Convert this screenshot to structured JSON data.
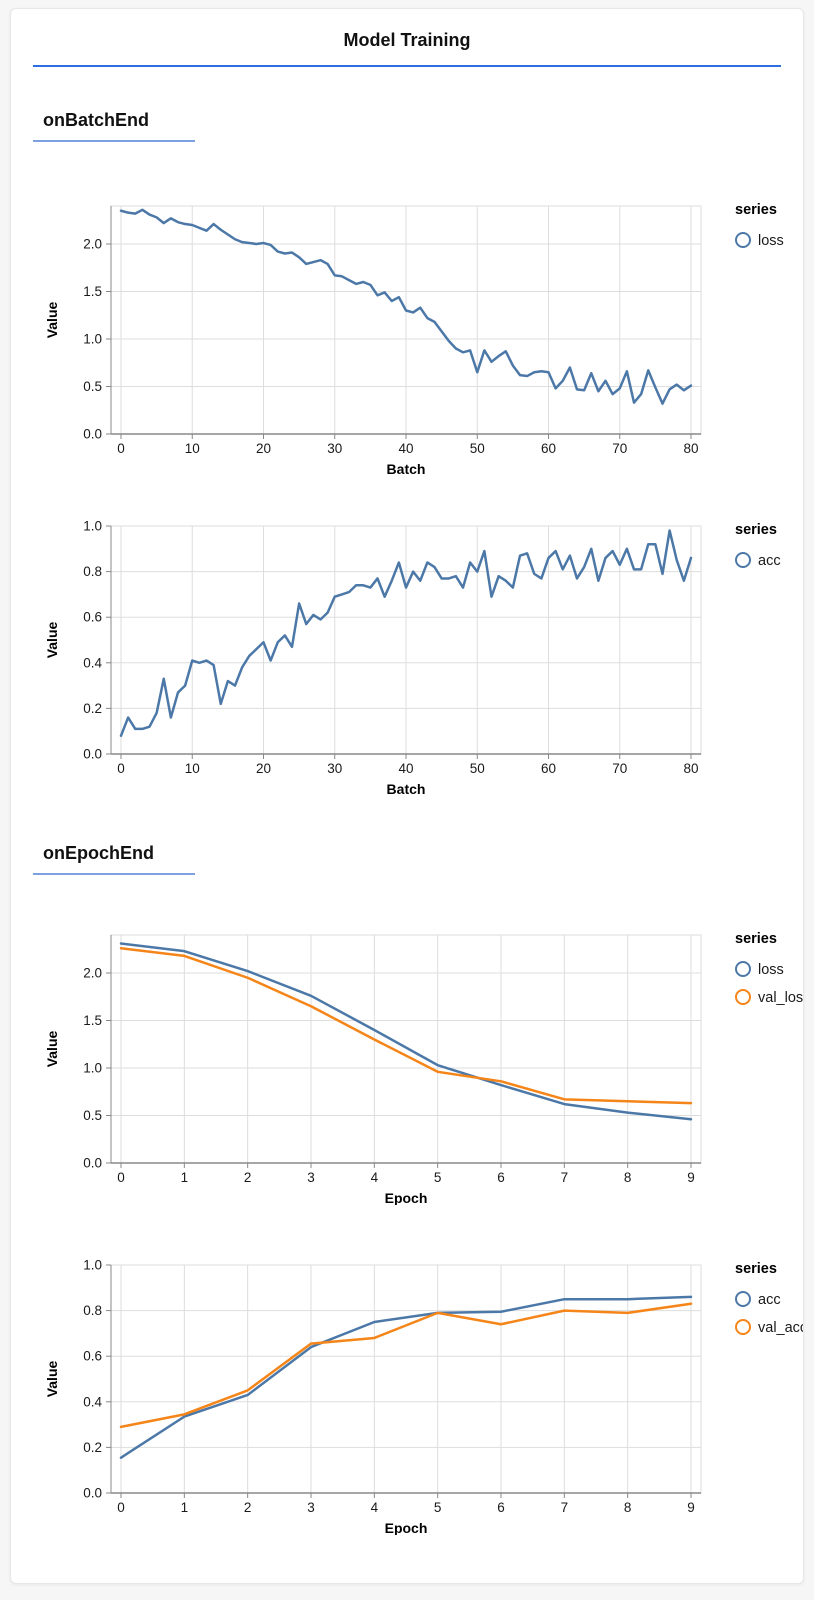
{
  "page": {
    "title": "Model Training"
  },
  "sections": [
    {
      "heading": "onBatchEnd"
    },
    {
      "heading": "onEpochEnd"
    }
  ],
  "theme": {
    "title_rule_color": "#2b6fe3",
    "heading_underline_color": "#7da0e2",
    "grid_color": "#dddddd",
    "axis_domain_color": "#888888",
    "tick_label_color": "#1a1a1a",
    "series_blue": "#4c78a8",
    "series_orange": "#f58518"
  },
  "chart_data": [
    {
      "id": "batch-loss",
      "type": "line",
      "section": "onBatchEnd",
      "xlabel": "Batch",
      "ylabel": "Value",
      "legend_title": "series",
      "legend_position": "right",
      "grid": true,
      "x_domain": [
        0,
        80
      ],
      "y_domain": [
        0,
        2.4
      ],
      "x_tick_values": [
        0,
        10,
        20,
        30,
        40,
        50,
        60,
        70,
        80
      ],
      "x_tick_labels": [
        "0",
        "10",
        "20",
        "30",
        "40",
        "50",
        "60",
        "70",
        "80"
      ],
      "y_tick_values": [
        0,
        0.5,
        1.0,
        1.5,
        2.0
      ],
      "y_tick_labels": [
        "0.0",
        "0.5",
        "1.0",
        "1.5",
        "2.0"
      ],
      "series": [
        {
          "name": "loss",
          "color": "#4c78a8",
          "values": [
            2.35,
            2.33,
            2.32,
            2.36,
            2.31,
            2.28,
            2.22,
            2.27,
            2.23,
            2.21,
            2.2,
            2.17,
            2.14,
            2.21,
            2.15,
            2.1,
            2.05,
            2.02,
            2.01,
            2.0,
            2.01,
            1.99,
            1.92,
            1.9,
            1.91,
            1.86,
            1.79,
            1.81,
            1.83,
            1.79,
            1.67,
            1.66,
            1.62,
            1.58,
            1.6,
            1.57,
            1.46,
            1.49,
            1.4,
            1.44,
            1.3,
            1.28,
            1.33,
            1.22,
            1.18,
            1.08,
            0.98,
            0.9,
            0.86,
            0.88,
            0.65,
            0.88,
            0.76,
            0.82,
            0.87,
            0.72,
            0.62,
            0.61,
            0.65,
            0.66,
            0.65,
            0.48,
            0.56,
            0.7,
            0.47,
            0.46,
            0.64,
            0.45,
            0.56,
            0.42,
            0.48,
            0.66,
            0.33,
            0.42,
            0.67,
            0.49,
            0.32,
            0.47,
            0.52,
            0.46,
            0.51
          ]
        }
      ]
    },
    {
      "id": "batch-acc",
      "type": "line",
      "section": "onBatchEnd",
      "xlabel": "Batch",
      "ylabel": "Value",
      "legend_title": "series",
      "legend_position": "right",
      "grid": true,
      "x_domain": [
        0,
        80
      ],
      "y_domain": [
        0,
        1.0
      ],
      "x_tick_values": [
        0,
        10,
        20,
        30,
        40,
        50,
        60,
        70,
        80
      ],
      "x_tick_labels": [
        "0",
        "10",
        "20",
        "30",
        "40",
        "50",
        "60",
        "70",
        "80"
      ],
      "y_tick_values": [
        0,
        0.2,
        0.4,
        0.6,
        0.8,
        1.0
      ],
      "y_tick_labels": [
        "0.0",
        "0.2",
        "0.4",
        "0.6",
        "0.8",
        "1.0"
      ],
      "series": [
        {
          "name": "acc",
          "color": "#4c78a8",
          "values": [
            0.08,
            0.16,
            0.11,
            0.11,
            0.12,
            0.18,
            0.33,
            0.16,
            0.27,
            0.3,
            0.41,
            0.4,
            0.41,
            0.39,
            0.22,
            0.32,
            0.3,
            0.38,
            0.43,
            0.46,
            0.49,
            0.41,
            0.49,
            0.52,
            0.47,
            0.66,
            0.57,
            0.61,
            0.59,
            0.62,
            0.69,
            0.7,
            0.71,
            0.74,
            0.74,
            0.73,
            0.77,
            0.69,
            0.76,
            0.84,
            0.73,
            0.8,
            0.76,
            0.84,
            0.82,
            0.77,
            0.77,
            0.78,
            0.73,
            0.84,
            0.8,
            0.89,
            0.69,
            0.78,
            0.76,
            0.73,
            0.87,
            0.88,
            0.79,
            0.77,
            0.86,
            0.89,
            0.81,
            0.87,
            0.77,
            0.82,
            0.9,
            0.76,
            0.86,
            0.89,
            0.83,
            0.9,
            0.81,
            0.81,
            0.92,
            0.92,
            0.79,
            0.98,
            0.85,
            0.76,
            0.86
          ]
        }
      ]
    },
    {
      "id": "epoch-loss",
      "type": "line",
      "section": "onEpochEnd",
      "xlabel": "Epoch",
      "ylabel": "Value",
      "legend_title": "series",
      "legend_position": "right",
      "grid": true,
      "x_domain": [
        0,
        9
      ],
      "y_domain": [
        0,
        2.4
      ],
      "x_tick_values": [
        0,
        1,
        2,
        3,
        4,
        5,
        6,
        7,
        8,
        9
      ],
      "x_tick_labels": [
        "0",
        "1",
        "2",
        "3",
        "4",
        "5",
        "6",
        "7",
        "8",
        "9"
      ],
      "y_tick_values": [
        0,
        0.5,
        1.0,
        1.5,
        2.0
      ],
      "y_tick_labels": [
        "0.0",
        "0.5",
        "1.0",
        "1.5",
        "2.0"
      ],
      "series": [
        {
          "name": "loss",
          "color": "#4c78a8",
          "values": [
            2.31,
            2.23,
            2.02,
            1.76,
            1.4,
            1.03,
            0.82,
            0.62,
            0.53,
            0.46
          ]
        },
        {
          "name": "val_loss",
          "color": "#f58518",
          "values": [
            2.26,
            2.18,
            1.95,
            1.65,
            1.3,
            0.96,
            0.86,
            0.67,
            0.65,
            0.63
          ]
        }
      ]
    },
    {
      "id": "epoch-acc",
      "type": "line",
      "section": "onEpochEnd",
      "xlabel": "Epoch",
      "ylabel": "Value",
      "legend_title": "series",
      "legend_position": "right",
      "grid": true,
      "x_domain": [
        0,
        9
      ],
      "y_domain": [
        0,
        1.0
      ],
      "x_tick_values": [
        0,
        1,
        2,
        3,
        4,
        5,
        6,
        7,
        8,
        9
      ],
      "x_tick_labels": [
        "0",
        "1",
        "2",
        "3",
        "4",
        "5",
        "6",
        "7",
        "8",
        "9"
      ],
      "y_tick_values": [
        0,
        0.2,
        0.4,
        0.6,
        0.8,
        1.0
      ],
      "y_tick_labels": [
        "0.0",
        "0.2",
        "0.4",
        "0.6",
        "0.8",
        "1.0"
      ],
      "series": [
        {
          "name": "acc",
          "color": "#4c78a8",
          "values": [
            0.155,
            0.335,
            0.43,
            0.64,
            0.75,
            0.79,
            0.795,
            0.85,
            0.85,
            0.86
          ]
        },
        {
          "name": "val_acc",
          "color": "#f58518",
          "values": [
            0.29,
            0.345,
            0.45,
            0.655,
            0.68,
            0.79,
            0.74,
            0.8,
            0.79,
            0.83
          ]
        }
      ]
    }
  ]
}
